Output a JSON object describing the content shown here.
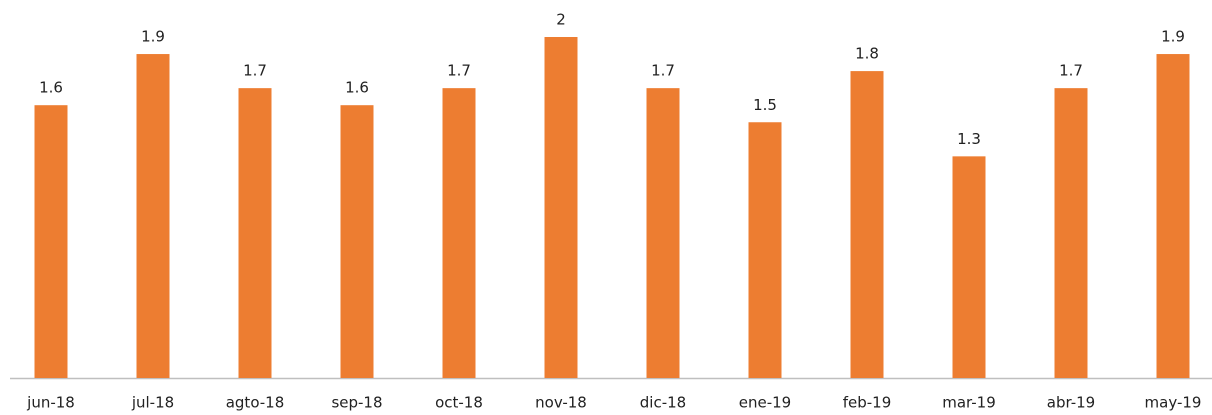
{
  "chart_data": {
    "type": "bar",
    "categories": [
      "jun-18",
      "jul-18",
      "agto-18",
      "sep-18",
      "oct-18",
      "nov-18",
      "dic-18",
      "ene-19",
      "feb-19",
      "mar-19",
      "abr-19",
      "may-19"
    ],
    "values": [
      1.6,
      1.9,
      1.7,
      1.6,
      1.7,
      2,
      1.7,
      1.5,
      1.8,
      1.3,
      1.7,
      1.9
    ],
    "color": "#ed7d31"
  }
}
